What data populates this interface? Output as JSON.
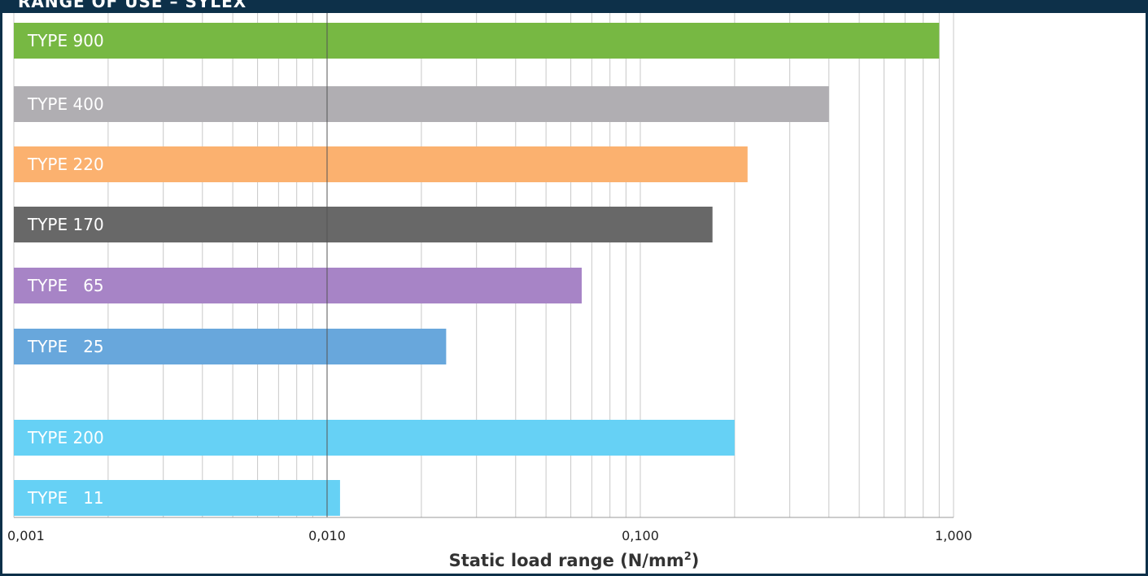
{
  "header": {
    "title": "RANGE OF USE – SYLEX"
  },
  "chart_data": {
    "type": "bar",
    "orientation": "horizontal",
    "x_scale": "log",
    "xlim": [
      0.001,
      1.0
    ],
    "xticks": [
      {
        "value": 0.001,
        "label": "0,001"
      },
      {
        "value": 0.01,
        "label": "0,010"
      },
      {
        "value": 0.1,
        "label": "0,100"
      },
      {
        "value": 1.0,
        "label": "1,000"
      }
    ],
    "grid": true,
    "xlabel": {
      "text": "Static load range (N/mm",
      "sup": "2",
      "suffix": ")"
    },
    "bars": [
      {
        "label": "TYPE 900",
        "value": 0.9,
        "color": "#77b843"
      },
      {
        "label": "TYPE 400",
        "value": 0.4,
        "color": "#b0aeb2"
      },
      {
        "label": "TYPE 220",
        "value": 0.22,
        "color": "#fbb16f"
      },
      {
        "label": "TYPE 170",
        "value": 0.17,
        "color": "#686868"
      },
      {
        "label": "TYPE   65",
        "value": 0.065,
        "color": "#a784c6"
      },
      {
        "label": "TYPE   25",
        "value": 0.024,
        "color": "#68a7dc"
      },
      {
        "label": "TYPE 200",
        "value": 0.2,
        "color": "#66d1f5"
      },
      {
        "label": "TYPE   11",
        "value": 0.011,
        "color": "#66d1f5"
      }
    ]
  }
}
